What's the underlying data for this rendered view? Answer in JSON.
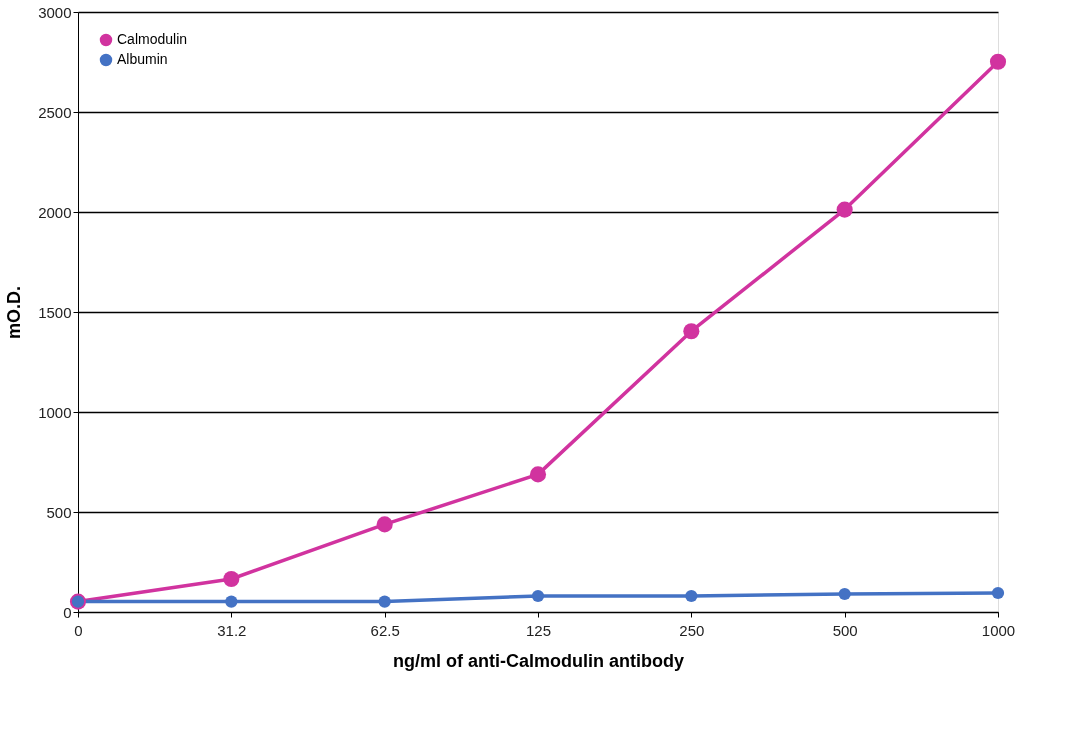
{
  "chart_data": {
    "type": "line",
    "xlabel": "ng/ml of anti-Calmodulin antibody",
    "ylabel": "mO.D.",
    "categories": [
      "0",
      "31.2",
      "62.5",
      "125",
      "250",
      "500",
      "1000"
    ],
    "series": [
      {
        "name": "Calmodulin",
        "color": "#d1339f",
        "values": [
          52,
          165,
          438,
          688,
          1404,
          2012,
          2751
        ]
      },
      {
        "name": "Albumin",
        "color": "#4472c4",
        "values": [
          52,
          52,
          52,
          80,
          80,
          90,
          95
        ]
      }
    ],
    "ylim": [
      0,
      3000
    ],
    "yticks": [
      0,
      500,
      1000,
      1500,
      2000,
      2500,
      3000
    ],
    "grid": "y",
    "legend": "top left",
    "marker": "circle",
    "line_style": "solid"
  }
}
